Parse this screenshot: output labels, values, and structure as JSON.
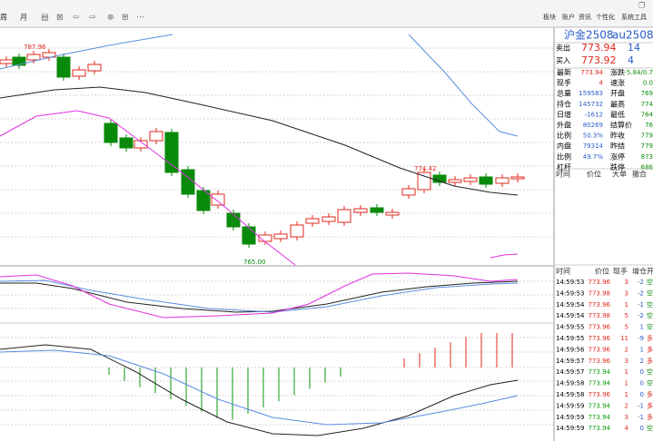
{
  "toolbar": {
    "items": [
      "周",
      "月"
    ],
    "menu": [
      "板块",
      "账户",
      "资讯",
      "个性化",
      "系统工具"
    ]
  },
  "quote": {
    "name": "沪金2508",
    "code": "au2508",
    "ask": {
      "label": "卖出",
      "price": "773.94",
      "volume": "14"
    },
    "bid": {
      "label": "买入",
      "price": "773.92",
      "volume": "4"
    },
    "stats": [
      [
        "最新",
        "773.94",
        "涨跌",
        "-5.84/0.7"
      ],
      [
        "现手",
        "4",
        "速涨",
        "0.0"
      ],
      [
        "总量",
        "159583",
        "开盘",
        "769"
      ],
      [
        "持仓",
        "145732",
        "最高",
        "774"
      ],
      [
        "日增",
        "-1612",
        "最低",
        "764"
      ],
      [
        "外盘",
        "80269",
        "结算价",
        "76"
      ],
      [
        "比例",
        "50.3%",
        "昨收",
        "779"
      ],
      [
        "内盘",
        "79314",
        "昨结",
        "779"
      ],
      [
        "比例",
        "49.7%",
        "涨停",
        "873"
      ],
      [
        "杠杆",
        "",
        "跌停",
        "686"
      ]
    ],
    "tick_header": [
      "时间",
      "价位",
      "大单",
      "撤合"
    ]
  },
  "trades": {
    "header": [
      "时间",
      "价位",
      "现手",
      "增仓",
      "开"
    ],
    "rows": [
      [
        "14:59:53",
        "773.96",
        "3",
        "-2",
        "空"
      ],
      [
        "14:59:53",
        "773.98",
        "3",
        "-2",
        "空"
      ],
      [
        "14:59:54",
        "773.96",
        "1",
        "-1",
        "空"
      ],
      [
        "14:59:54",
        "773.98",
        "5",
        "-2",
        "空"
      ],
      [
        "14:59:55",
        "773.96",
        "5",
        "1",
        "空"
      ],
      [
        "14:59:55",
        "773.96",
        "11",
        "-9",
        "多"
      ],
      [
        "14:59:56",
        "773.96",
        "2",
        "1",
        "多"
      ],
      [
        "14:59:57",
        "773.96",
        "3",
        "2",
        "多"
      ],
      [
        "14:59:57",
        "773.94",
        "1",
        "0",
        "空"
      ],
      [
        "14:59:58",
        "773.94",
        "1",
        "0",
        "空"
      ],
      [
        "14:59:58",
        "773.96",
        "1",
        "0",
        "多"
      ],
      [
        "14:59:59",
        "773.94",
        "2",
        "-1",
        "多"
      ],
      [
        "14:59:59",
        "773.94",
        "3",
        "-1",
        "多"
      ],
      [
        "14:59:59",
        "773.94",
        "4",
        "0",
        "空"
      ]
    ],
    "price_colors": [
      "#e0281e",
      "#e0281e",
      "#e0281e",
      "#e0281e",
      "#e0281e",
      "#e0281e",
      "#e0281e",
      "#e0281e",
      "#0a9a0a",
      "#0a9a0a",
      "#e0281e",
      "#0a9a0a",
      "#0a9a0a",
      "#0a9a0a"
    ]
  },
  "chart_labels": {
    "high": "787.96",
    "mark": "774.42",
    "low": "765.00"
  }
}
